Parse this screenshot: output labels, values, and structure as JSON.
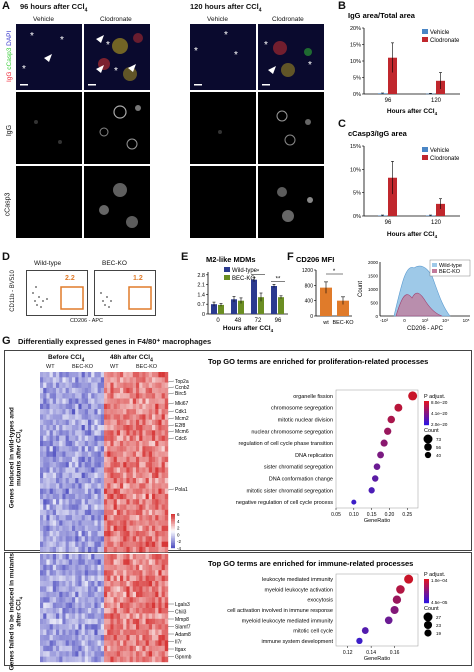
{
  "panels": {
    "A": "A",
    "B": "B",
    "C": "C",
    "D": "D",
    "E": "E",
    "F": "F",
    "G": "G"
  },
  "panelA": {
    "time1": "96 hours after CCl",
    "time2": "120 hours after CCl",
    "sub4": "4",
    "vehicle": "Vehicle",
    "clodronate": "Clodronate",
    "stain_igg": "IgG",
    "stain_ccasp3": "cCasp3",
    "stain_dapi": "DAPI",
    "row_igg": "IgG",
    "row_ccasp3": "cCasp3"
  },
  "panelB": {
    "title": "IgG area/Total area",
    "legend": [
      "Vehicle",
      "Clodronate"
    ]
  },
  "panelC": {
    "title": "cCasp3/IgG area",
    "legend": [
      "Vehicle",
      "Clodronate"
    ]
  },
  "panelD": {
    "wt": "Wild-type",
    "ko": "BEC-KO",
    "wt_val": "2.2",
    "ko_val": "1.2",
    "ylabel": "CD11b - BV510",
    "xlabel": "CD206 - APC"
  },
  "panelE": {
    "title": "M2-like MDMs",
    "legend": [
      "Wild-type",
      "BEC-KO"
    ]
  },
  "panelF": {
    "title": "CD206 MFI",
    "legend": [
      "Wild-type",
      "BEC-KO"
    ],
    "hist_ylabel": "Count",
    "hist_xlabel": "CD206 - APC",
    "hist_ticks_y": [
      "0",
      "500",
      "1000",
      "1500",
      "2000"
    ],
    "hist_ticks_x": [
      "-10³",
      "0",
      "10³",
      "10⁴",
      "10⁵"
    ]
  },
  "panelG": {
    "title": "Differentially expressed genes in F4/80⁺ macrophages",
    "before": "Before CCl",
    "after": "48h after CCl",
    "wt": "WT",
    "ko": "BEC-KO",
    "side_top": "Genes induced in wild-types and mutants after CCl",
    "side_bottom": "Genes failed to be induced in mutants after CCl",
    "genes_top": [
      "Top2a",
      "Ccnb2",
      "Birc5",
      "Mki67",
      "Cdk1",
      "Mcm2",
      "E2f8",
      "Mcm6",
      "Cdc6",
      "Pola1"
    ],
    "genes_bottom": [
      "Lgals3",
      "Chil3",
      "Mmp8",
      "Slamf7",
      "Adam8",
      "Il7r",
      "Itgax",
      "Gpnmb"
    ],
    "scale_ticks": [
      "6",
      "4",
      "2",
      "0",
      "-2",
      "-4"
    ],
    "go1_title": "Top GO terms are enriched for proliferation-related processes",
    "go2_title": "Top GO terms are enriched for immune-related processes",
    "padj": "P adjust.",
    "count": "Count",
    "gene_ratio": "GeneRatio"
  },
  "colors": {
    "vehicle": "#4a86c5",
    "clodronate": "#c0272d",
    "wildtype": "#2b3a8f",
    "becko": "#6b8e23",
    "orange": "#e07b2a",
    "hist_wt": "#9ec9e8",
    "hist_ko": "#c27a9a"
  },
  "chart_data": [
    {
      "type": "bar",
      "panel": "B",
      "title": "IgG area/Total area",
      "categories": [
        "96",
        "120"
      ],
      "xlabel": "Hours after CCl4",
      "ylabel": "",
      "ylim": [
        0,
        20
      ],
      "yticks": [
        "0%",
        "5%",
        "10%",
        "15%",
        "20%"
      ],
      "series": [
        {
          "name": "Vehicle",
          "values": [
            0.2,
            0.1
          ],
          "errors": [
            0.1,
            0.1
          ]
        },
        {
          "name": "Clodronate",
          "values": [
            11,
            4
          ],
          "errors": [
            4.5,
            2.5
          ]
        }
      ]
    },
    {
      "type": "bar",
      "panel": "C",
      "title": "cCasp3/IgG area",
      "categories": [
        "96",
        "120"
      ],
      "xlabel": "Hours after CCl4",
      "ylabel": "",
      "ylim": [
        0,
        15
      ],
      "yticks": [
        "0%",
        "5%",
        "10%",
        "15%"
      ],
      "series": [
        {
          "name": "Vehicle",
          "values": [
            0.1,
            0.1
          ],
          "errors": [
            0.1,
            0.1
          ]
        },
        {
          "name": "Clodronate",
          "values": [
            8.2,
            2.6
          ],
          "errors": [
            3.5,
            1.1
          ]
        }
      ]
    },
    {
      "type": "bar",
      "panel": "E",
      "title": "M2-like MDMs",
      "categories": [
        "0",
        "48",
        "72",
        "96"
      ],
      "xlabel": "Hours after CCl4",
      "ylabel": "",
      "ylim": [
        0,
        3
      ],
      "yticks": [
        "0",
        "0.7",
        "1.4",
        "2.1",
        "2.8"
      ],
      "significance": [
        "",
        "",
        "*",
        "**"
      ],
      "series": [
        {
          "name": "Wild-type",
          "values": [
            0.7,
            1.05,
            2.45,
            2.0
          ],
          "errors": [
            0.15,
            0.2,
            0.15,
            0.12
          ]
        },
        {
          "name": "BEC-KO",
          "values": [
            0.65,
            0.95,
            1.2,
            1.2
          ],
          "errors": [
            0.1,
            0.2,
            0.3,
            0.1
          ]
        }
      ]
    },
    {
      "type": "bar",
      "panel": "F",
      "title": "CD206 MFI",
      "categories": [
        "wt",
        "BEC-KO"
      ],
      "ylim": [
        0,
        1200
      ],
      "yticks": [
        "0",
        "400",
        "800",
        "1200"
      ],
      "significance": [
        "*"
      ],
      "series": [
        {
          "name": "CD206 MFI",
          "values": [
            740,
            400
          ],
          "errors": [
            150,
            100
          ]
        }
      ]
    },
    {
      "type": "scatter",
      "panel": "G-top",
      "title": "Top GO terms are enriched for proliferation-related processes",
      "xlabel": "GeneRatio",
      "xticks": [
        "0.05",
        "0.10",
        "0.15",
        "0.20",
        "0.25"
      ],
      "xlim": [
        0.05,
        0.28
      ],
      "categories": [
        "organelle fission",
        "chromosome segregation",
        "mitotic nuclear division",
        "nuclear chromosome segregation",
        "regulation of cell cycle phase transition",
        "DNA replication",
        "sister chromatid segregation",
        "DNA conformation change",
        "mitotic sister chromatid segregation",
        "negative regulation of cell cycle process"
      ],
      "x": [
        0.265,
        0.225,
        0.205,
        0.195,
        0.185,
        0.175,
        0.165,
        0.16,
        0.15,
        0.1
      ],
      "count": [
        73,
        60,
        55,
        52,
        50,
        47,
        44,
        42,
        40,
        25
      ],
      "padj_ticks": [
        "8.0e−20",
        "4.1e−20",
        "2.0e−20"
      ],
      "count_ticks": [
        "73",
        "56",
        "40"
      ]
    },
    {
      "type": "scatter",
      "panel": "G-bottom",
      "title": "Top GO terms are enriched for immune-related processes",
      "xlabel": "GeneRatio",
      "xticks": [
        "0.12",
        "0.14",
        "0.16"
      ],
      "xlim": [
        0.11,
        0.18
      ],
      "categories": [
        "leukocyte mediated immunity",
        "myeloid leukocyte activation",
        "exocytosis",
        "cell activation involved in immune response",
        "myeloid leukocyte mediated immunity",
        "mitotic cell cycle",
        "immune system development"
      ],
      "x": [
        0.172,
        0.165,
        0.162,
        0.16,
        0.155,
        0.135,
        0.13
      ],
      "count": [
        27,
        25,
        24,
        23,
        21,
        17,
        15
      ],
      "padj_ticks": [
        "1.0e−04",
        "4.5e−05"
      ],
      "count_ticks": [
        "27",
        "23",
        "19"
      ]
    }
  ]
}
